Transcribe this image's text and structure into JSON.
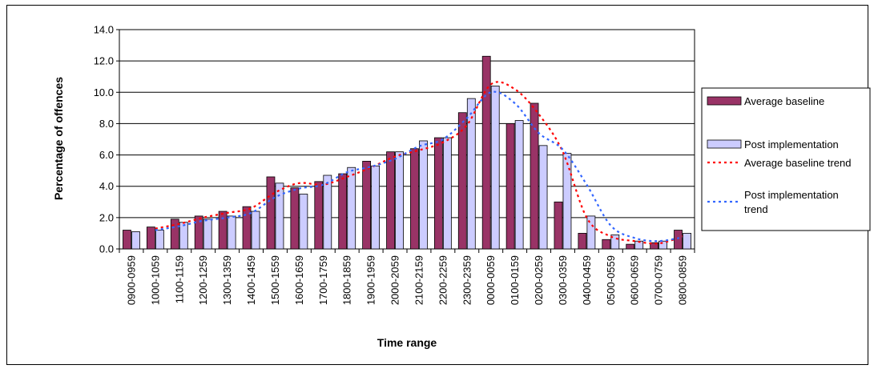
{
  "chart_data": {
    "type": "bar",
    "xlabel": "Time range",
    "ylabel": "Percentage of offences",
    "ylim": [
      0,
      14
    ],
    "yticks": [
      "0.0",
      "2.0",
      "4.0",
      "6.0",
      "8.0",
      "10.0",
      "12.0",
      "14.0"
    ],
    "grid": "horizontal",
    "legend_position": "right",
    "categories": [
      "0900-0959",
      "1000-1059",
      "1100-1159",
      "1200-1259",
      "1300-1359",
      "1400-1459",
      "1500-1559",
      "1600-1659",
      "1700-1759",
      "1800-1859",
      "1900-1959",
      "2000-2059",
      "2100-2159",
      "2200-2259",
      "2300-2359",
      "0000-0059",
      "0100-0159",
      "0200-0259",
      "0300-0359",
      "0400-0459",
      "0500-0559",
      "0600-0659",
      "0700-0759",
      "0800-0859"
    ],
    "series": [
      {
        "name": "Average baseline",
        "kind": "bar",
        "color": "#993366",
        "values": [
          1.2,
          1.4,
          1.9,
          2.1,
          2.4,
          2.7,
          4.6,
          3.9,
          4.3,
          4.8,
          5.6,
          6.2,
          6.4,
          7.1,
          8.7,
          12.3,
          8.0,
          9.3,
          3.0,
          1.0,
          0.6,
          0.3,
          0.4,
          1.2
        ]
      },
      {
        "name": "Post implementation",
        "kind": "bar",
        "color": "#ccccff",
        "values": [
          1.1,
          1.2,
          1.7,
          1.9,
          2.1,
          2.4,
          4.2,
          3.5,
          4.7,
          5.2,
          5.3,
          6.2,
          6.9,
          7.1,
          9.6,
          10.4,
          8.2,
          6.6,
          6.1,
          2.1,
          0.9,
          0.5,
          0.5,
          1.0
        ]
      },
      {
        "name": "Average baseline trend",
        "kind": "trend",
        "color": "#ff0000",
        "values": [
          null,
          1.3,
          1.6,
          2.0,
          2.3,
          2.6,
          3.6,
          4.2,
          4.1,
          4.6,
          5.2,
          5.9,
          6.3,
          6.8,
          7.9,
          10.5,
          10.2,
          8.6,
          6.2,
          2.0,
          0.8,
          0.5,
          0.35,
          0.8
        ]
      },
      {
        "name": "Post implementation trend",
        "kind": "trend",
        "color": "#3366ff",
        "values": [
          null,
          1.2,
          1.45,
          1.8,
          2.0,
          2.3,
          3.3,
          3.85,
          4.1,
          4.9,
          5.25,
          5.75,
          6.55,
          7.0,
          8.35,
          10.0,
          9.3,
          7.4,
          6.35,
          4.1,
          1.5,
          0.7,
          0.5,
          0.75
        ]
      }
    ],
    "legend_labels": [
      {
        "key": "Average baseline",
        "lines": [
          "Average baseline"
        ]
      },
      {
        "key": "Post implementation",
        "lines": [
          "Post implementation"
        ]
      },
      {
        "key": "Average baseline trend",
        "lines": [
          "Average baseline trend"
        ]
      },
      {
        "key": "Post implementation trend",
        "lines": [
          "Post implementation",
          "trend"
        ]
      }
    ]
  }
}
